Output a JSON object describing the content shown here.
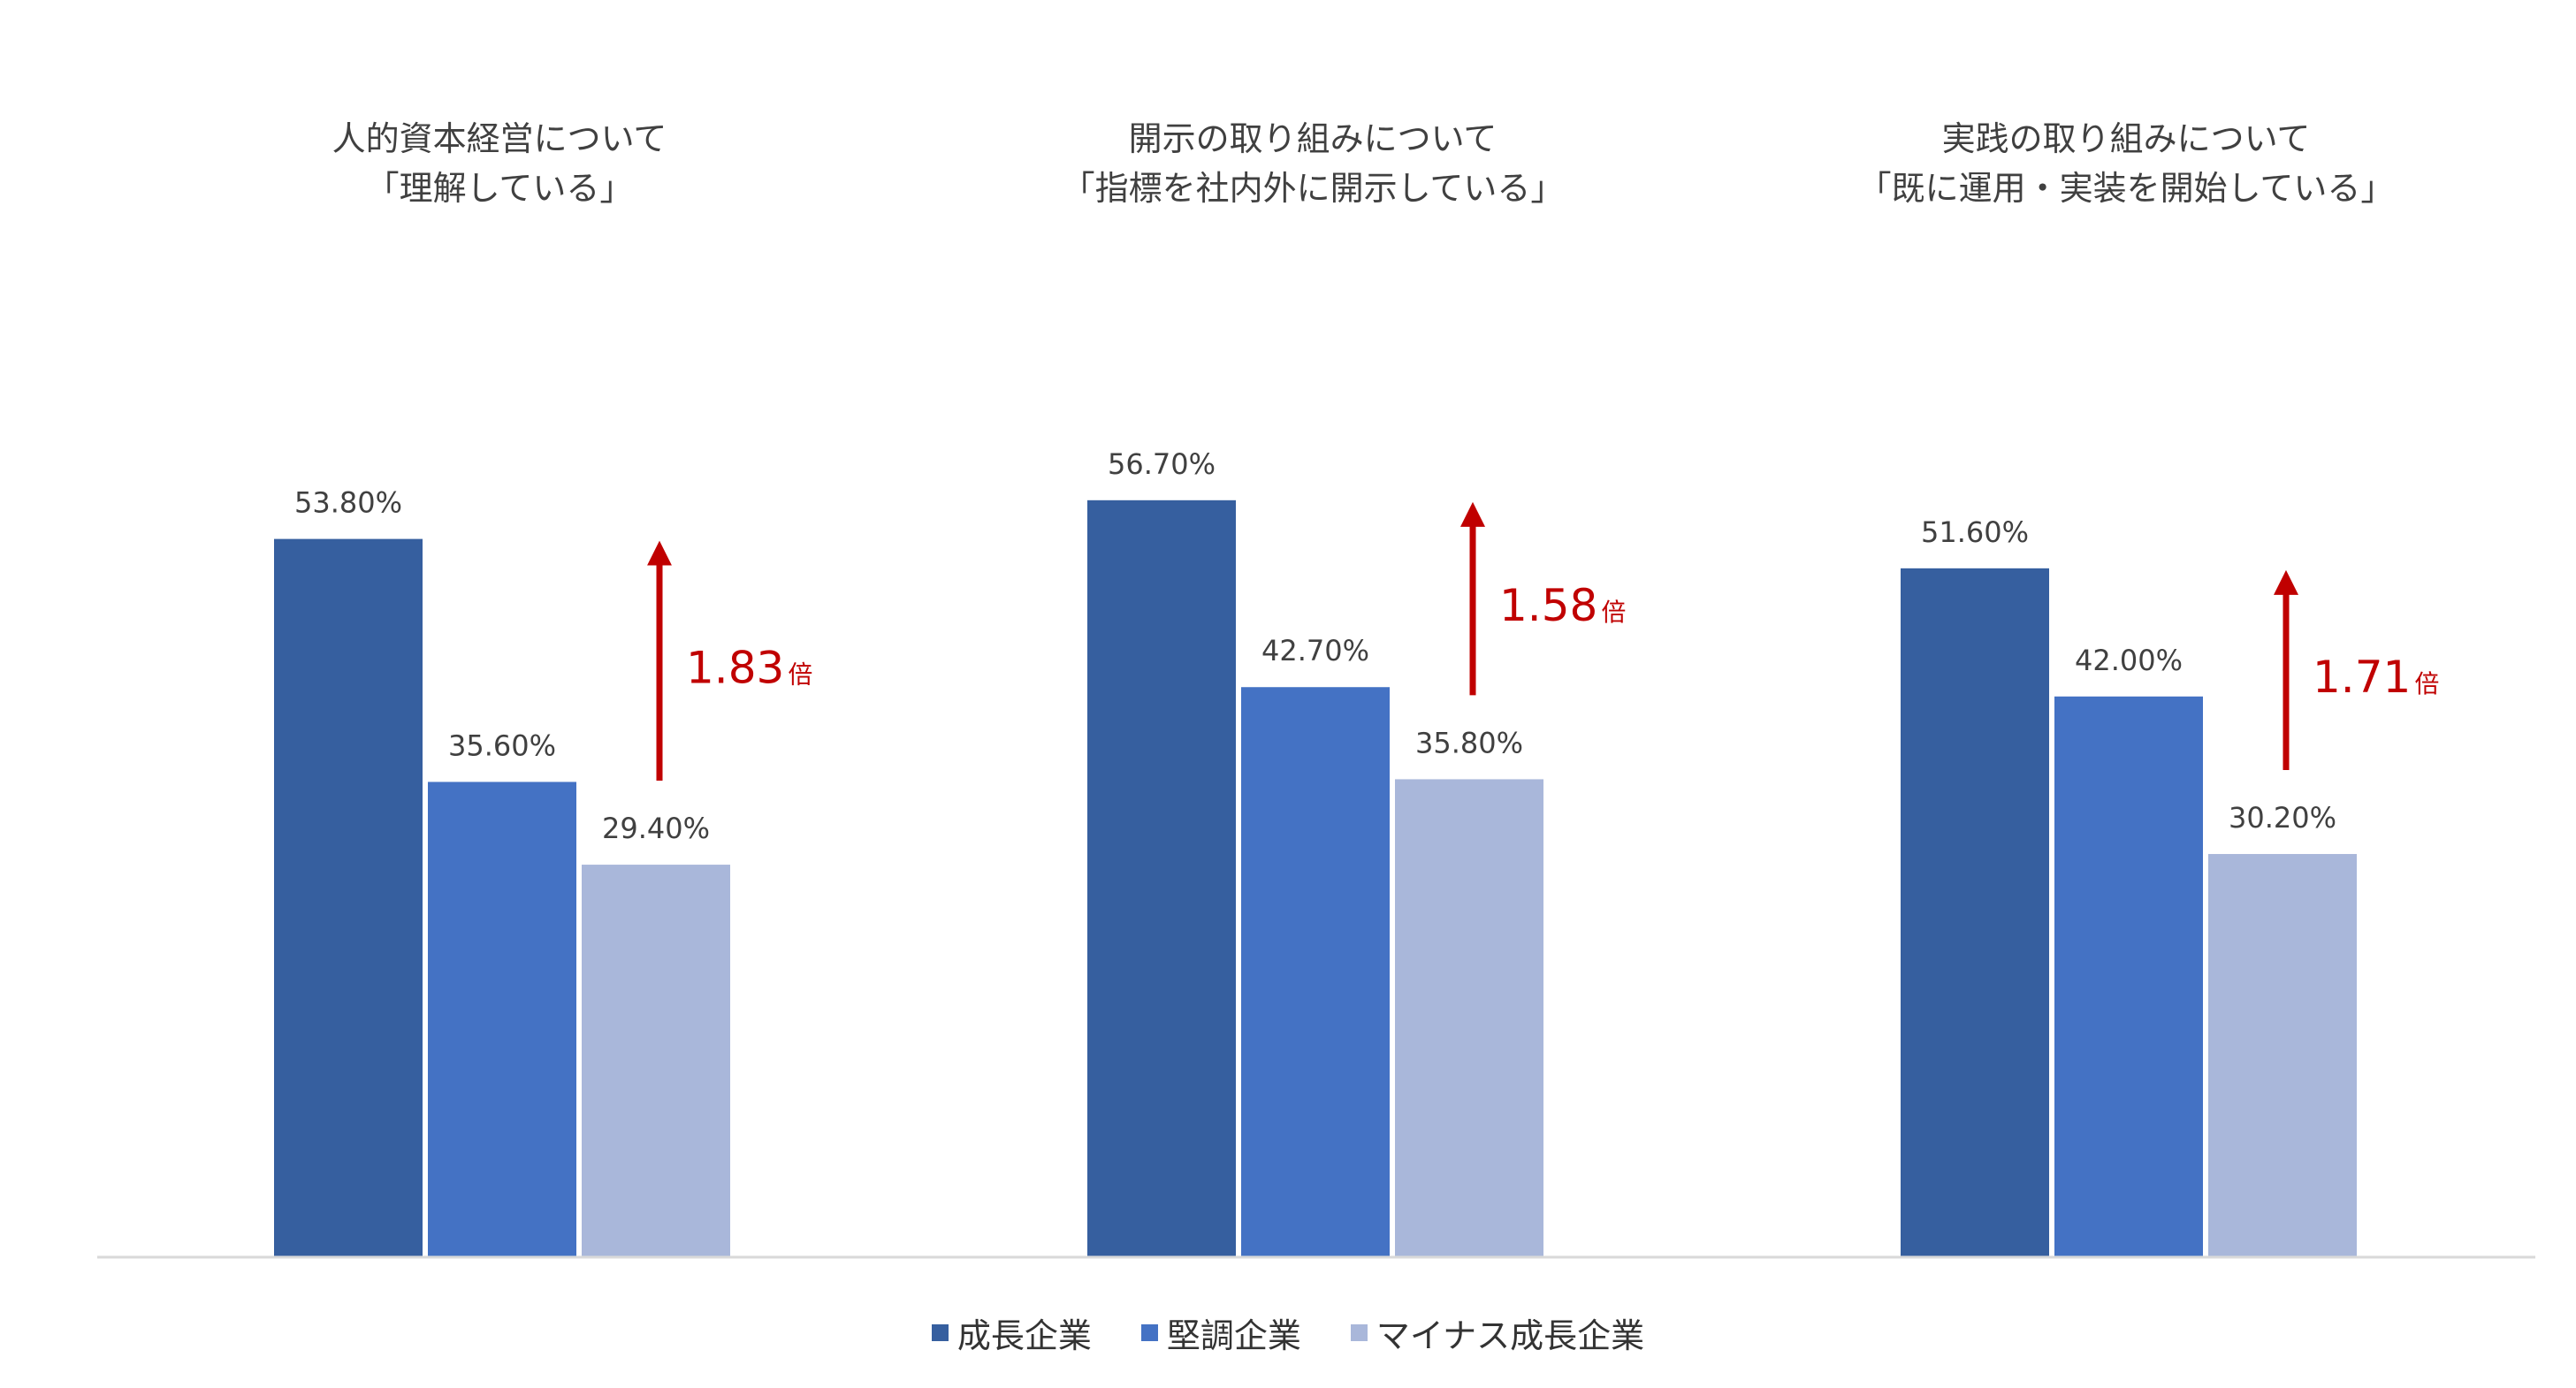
{
  "chart_data": {
    "type": "bar",
    "categories": [
      {
        "title_lines": [
          "人的資本経営について",
          "「理解している」"
        ]
      },
      {
        "title_lines": [
          "開示の取り組みについて",
          "「指標を社内外に開示している」"
        ]
      },
      {
        "title_lines": [
          "実践の取り組みについて",
          "「既に運用・実装を開始している」"
        ]
      }
    ],
    "series": [
      {
        "name": "成長企業",
        "color": "#365F9F",
        "values": [
          53.8,
          56.7,
          51.6
        ],
        "labels": [
          "53.80%",
          "56.70%",
          "51.60%"
        ]
      },
      {
        "name": "堅調企業",
        "color": "#4472C4",
        "values": [
          35.6,
          42.7,
          42.0
        ],
        "labels": [
          "35.60%",
          "42.70%",
          "42.00%"
        ]
      },
      {
        "name": "マイナス成長企業",
        "color": "#A9B7DA",
        "values": [
          29.4,
          35.8,
          30.2
        ],
        "labels": [
          "29.40%",
          "35.80%",
          "30.20%"
        ]
      }
    ],
    "annotations": [
      {
        "ratio": "1.83",
        "unit": "倍",
        "from_series": 2,
        "to_series": 0
      },
      {
        "ratio": "1.58",
        "unit": "倍",
        "from_series": 2,
        "to_series": 0
      },
      {
        "ratio": "1.71",
        "unit": "倍",
        "from_series": 2,
        "to_series": 0
      }
    ],
    "annotation_color": "#C00000",
    "ylim": [
      0,
      100
    ],
    "grid": false,
    "legend_position": "bottom"
  }
}
